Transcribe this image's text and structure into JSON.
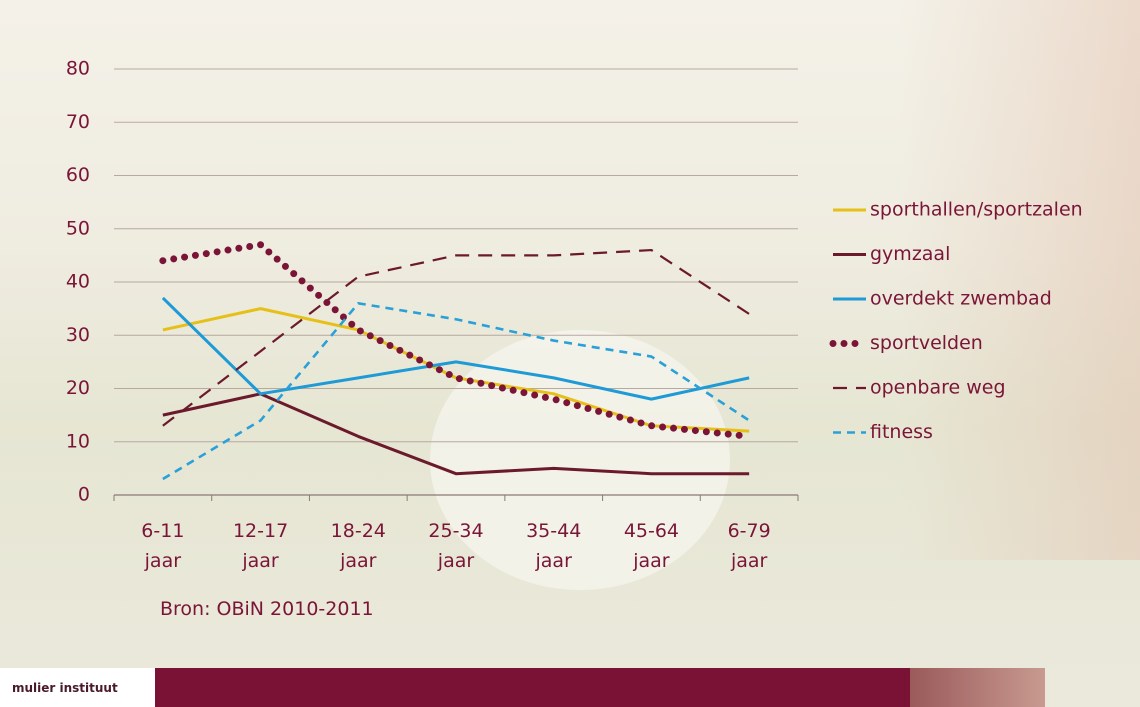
{
  "chart_data": {
    "type": "line",
    "categories": [
      "6-11 jaar",
      "12-17 jaar",
      "18-24 jaar",
      "25-34 jaar",
      "35-44 jaar",
      "45-64 jaar",
      "6-79 jaar"
    ],
    "series": [
      {
        "name": "sporthallen/sportzalen",
        "color": "#e6c019",
        "dash": "solid",
        "values": [
          31,
          35,
          31,
          22,
          19,
          13,
          12
        ]
      },
      {
        "name": "gymzaal",
        "color": "#6b1a2c",
        "dash": "solid",
        "values": [
          15,
          19,
          11,
          4,
          5,
          4,
          4
        ]
      },
      {
        "name": "overdekt zwembad",
        "color": "#1e9ad6",
        "dash": "solid",
        "values": [
          37,
          19,
          22,
          25,
          22,
          18,
          22
        ]
      },
      {
        "name": "sportvelden",
        "color": "#7b1538",
        "dash": "dotted",
        "values": [
          44,
          47,
          31,
          22,
          18,
          13,
          11
        ]
      },
      {
        "name": "openbare weg",
        "color": "#6b1a2c",
        "dash": "dashed",
        "values": [
          13,
          27,
          41,
          45,
          45,
          46,
          34
        ]
      },
      {
        "name": "fitness",
        "color": "#2aa0d8",
        "dash": "short-dashed",
        "values": [
          3,
          14,
          36,
          33,
          29,
          26,
          14
        ]
      }
    ],
    "ylim": [
      0,
      80
    ],
    "yticks": [
      0,
      10,
      20,
      30,
      40,
      50,
      60,
      70,
      80
    ],
    "grid": true,
    "legend": "right",
    "source": "Bron: OBiN 2010-2011"
  },
  "footer": {
    "logo": "mulier instituut"
  }
}
